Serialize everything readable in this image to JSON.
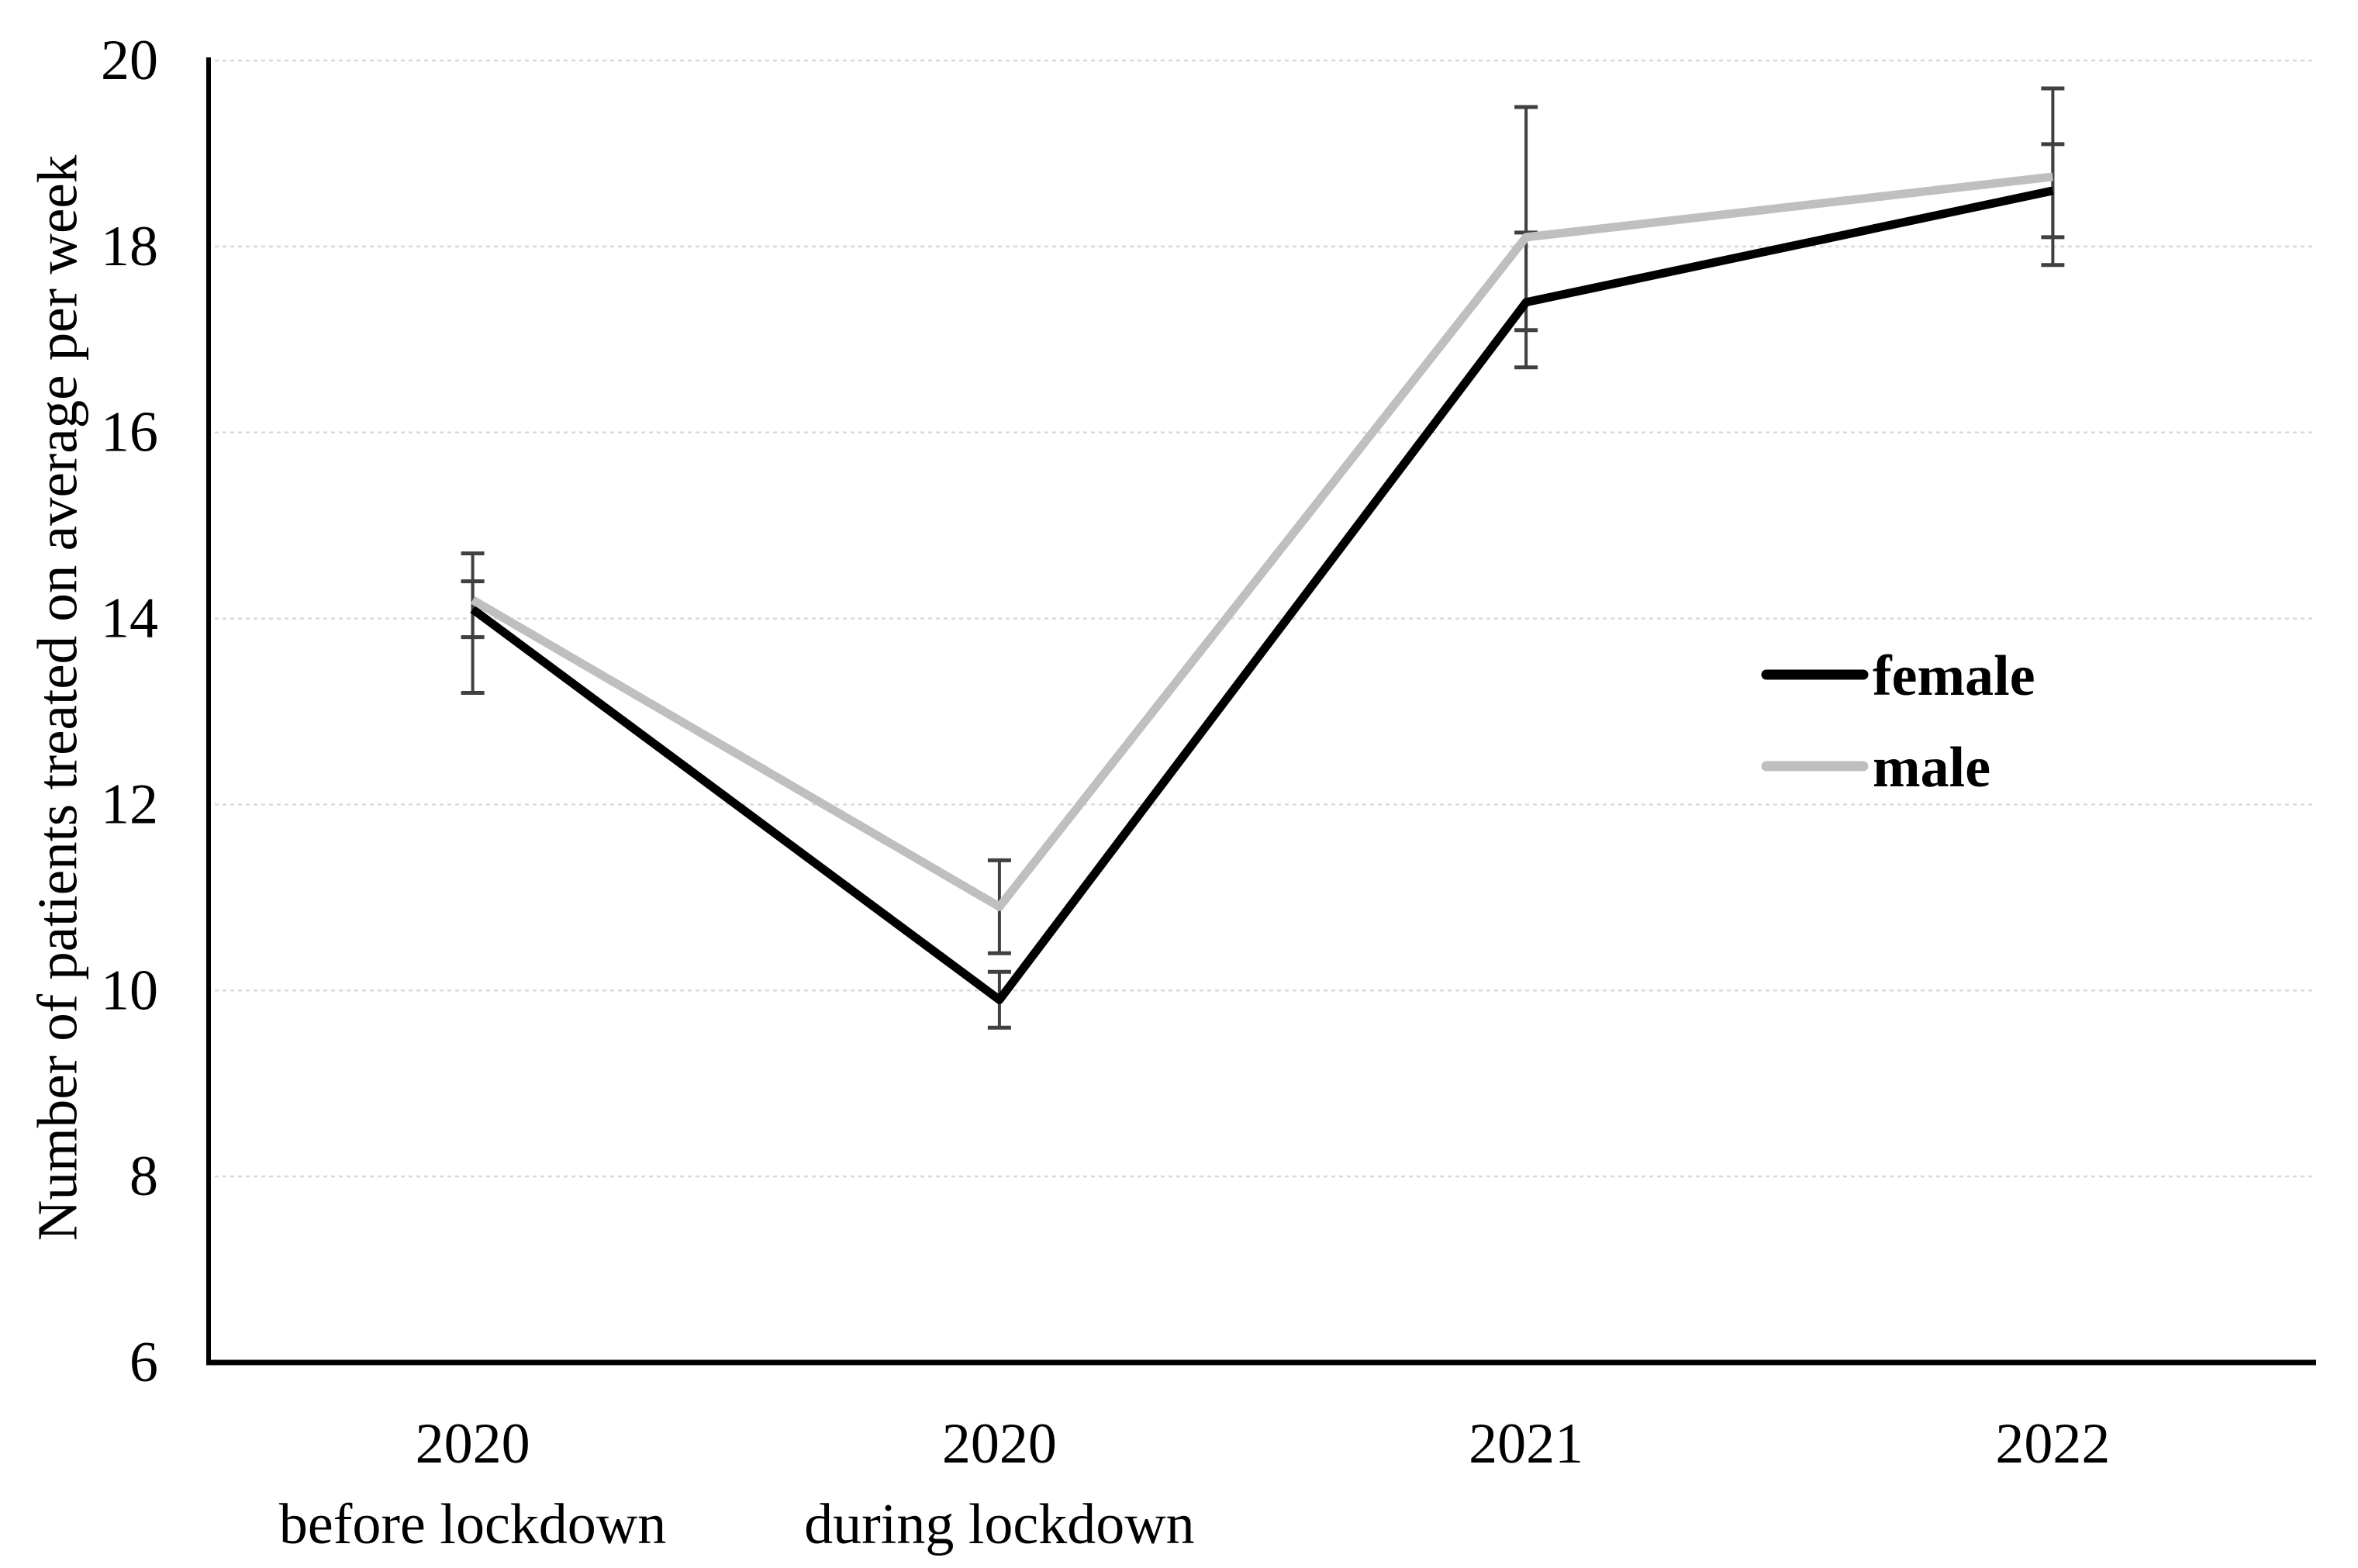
{
  "chart_data": {
    "type": "line",
    "title": "",
    "xlabel": "",
    "ylabel": "Number of patients treated on average per week",
    "ylim": [
      6,
      20
    ],
    "yticks": [
      6,
      8,
      10,
      12,
      14,
      16,
      18,
      20
    ],
    "grid": true,
    "legend_position": "right-middle",
    "categories": [
      {
        "line1": "2020",
        "line2": "before lockdown"
      },
      {
        "line1": "2020",
        "line2": "during lockdown"
      },
      {
        "line1": "2021",
        "line2": ""
      },
      {
        "line1": "2022",
        "line2": ""
      }
    ],
    "series": [
      {
        "name": "female",
        "color": "#000000",
        "values": [
          14.1,
          9.9,
          17.4,
          18.6
        ],
        "err_low": [
          13.2,
          9.6,
          16.7,
          18.1
        ],
        "err_high": [
          14.4,
          10.2,
          18.15,
          19.1
        ]
      },
      {
        "name": "male",
        "color": "#bfbfbf",
        "values": [
          14.2,
          10.9,
          18.1,
          18.75
        ],
        "err_low": [
          13.8,
          10.4,
          17.1,
          17.8
        ],
        "err_high": [
          14.7,
          11.4,
          19.5,
          19.7
        ]
      }
    ],
    "colors": {
      "gridline": "#d9d9d9",
      "axis": "#000000",
      "error_bar": "#404040",
      "background": "#ffffff"
    }
  }
}
